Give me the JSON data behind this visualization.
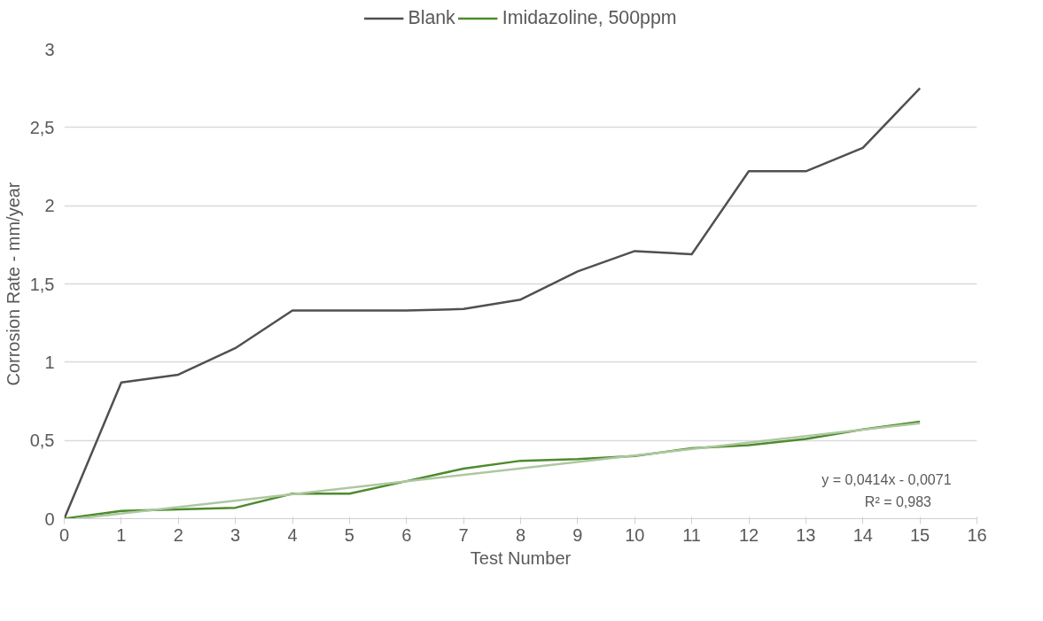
{
  "chart_data": {
    "type": "line",
    "xlabel": "Test Number",
    "ylabel": "Corrosion Rate - mm/year",
    "x": [
      0,
      1,
      2,
      3,
      4,
      5,
      6,
      7,
      8,
      9,
      10,
      11,
      12,
      13,
      14,
      15
    ],
    "series": [
      {
        "name": "Blank",
        "color": "#505050",
        "values": [
          0,
          0.87,
          0.92,
          1.09,
          1.33,
          1.33,
          1.33,
          1.34,
          1.4,
          1.58,
          1.71,
          1.69,
          2.22,
          2.22,
          2.37,
          2.75
        ]
      },
      {
        "name": "Imidazoline, 500ppm",
        "color": "#4e8a2e",
        "values": [
          0,
          0.05,
          0.06,
          0.07,
          0.16,
          0.16,
          0.24,
          0.32,
          0.37,
          0.38,
          0.4,
          0.45,
          0.47,
          0.51,
          0.57,
          0.62
        ]
      },
      {
        "type": "line",
        "color": "#adc8a0",
        "x": [
          0.2,
          15
        ],
        "values": [
          0.0,
          0.61
        ]
      }
    ],
    "xlim": [
      0,
      16
    ],
    "xticks": [
      0,
      1,
      2,
      3,
      4,
      5,
      6,
      7,
      8,
      9,
      10,
      11,
      12,
      13,
      14,
      15,
      16
    ],
    "ylim": [
      0,
      3
    ],
    "yticks": [
      0,
      {
        "value": 0.5,
        "label": "0,5"
      },
      1,
      {
        "value": 1.5,
        "label": "1,5"
      },
      2,
      {
        "value": 2.5,
        "label": "2,5"
      },
      3
    ],
    "annotations": [
      "y = 0,0414x - 0,0071",
      "R² = 0,983"
    ],
    "grid": "y",
    "legend": "top",
    "marker": "none",
    "line_style": "solid"
  }
}
